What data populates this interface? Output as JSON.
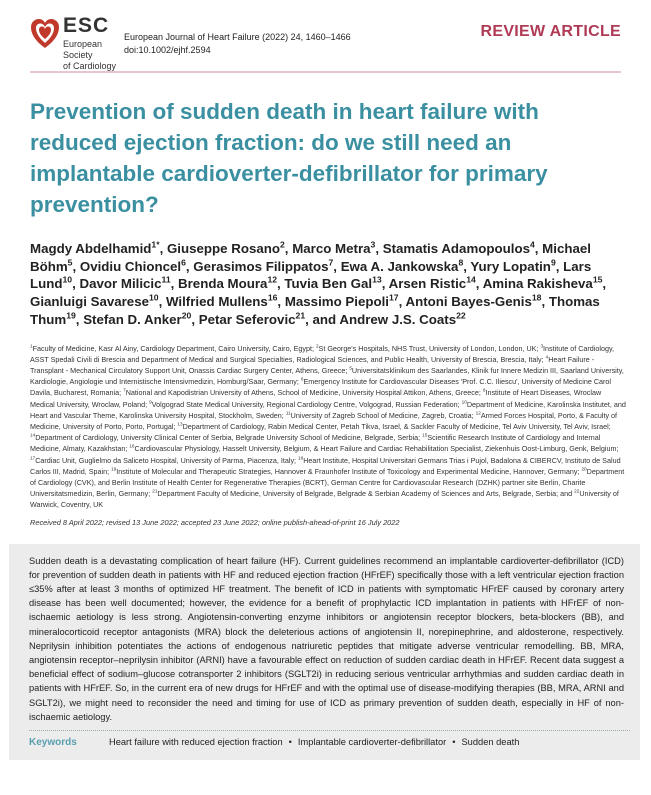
{
  "header": {
    "logo_text": "ESC",
    "society_line1": "European Society",
    "society_line2": "of Cardiology",
    "journal_citation": "European Journal of Heart Failure (2022) 24, 1460–1466",
    "doi": "doi:10.1002/ejhf.2594",
    "article_type": "REVIEW ARTICLE"
  },
  "colors": {
    "title": "#3a8fa1",
    "article_type": "#b03a55",
    "rule": "#e8c6cf",
    "abstract_bg": "#ececec",
    "keywords_label": "#5a9fb0"
  },
  "title": "Prevention of sudden death in heart failure with reduced ejection fraction: do we still need an implantable cardioverter-defibrillator for primary prevention?",
  "authors": [
    {
      "name": "Magdy Abdelhamid",
      "sup": "1*"
    },
    {
      "name": "Giuseppe Rosano",
      "sup": "2"
    },
    {
      "name": "Marco Metra",
      "sup": "3"
    },
    {
      "name": "Stamatis Adamopoulos",
      "sup": "4"
    },
    {
      "name": "Michael Böhm",
      "sup": "5"
    },
    {
      "name": "Ovidiu Chioncel",
      "sup": "6"
    },
    {
      "name": "Gerasimos Filippatos",
      "sup": "7"
    },
    {
      "name": "Ewa A. Jankowska",
      "sup": "8"
    },
    {
      "name": "Yury Lopatin",
      "sup": "9"
    },
    {
      "name": "Lars Lund",
      "sup": "10"
    },
    {
      "name": "Davor Milicic",
      "sup": "11"
    },
    {
      "name": "Brenda Moura",
      "sup": "12"
    },
    {
      "name": "Tuvia Ben Gal",
      "sup": "13"
    },
    {
      "name": "Arsen Ristic",
      "sup": "14"
    },
    {
      "name": "Amina Rakisheva",
      "sup": "15"
    },
    {
      "name": "Gianluigi Savarese",
      "sup": "10"
    },
    {
      "name": "Wilfried Mullens",
      "sup": "16"
    },
    {
      "name": "Massimo Piepoli",
      "sup": "17"
    },
    {
      "name": "Antoni Bayes-Genis",
      "sup": "18"
    },
    {
      "name": "Thomas Thum",
      "sup": "19"
    },
    {
      "name": "Stefan D. Anker",
      "sup": "20"
    },
    {
      "name": "Petar Seferovic",
      "sup": "21"
    },
    {
      "name": "Andrew J.S. Coats",
      "sup": "22",
      "prefix": "and "
    }
  ],
  "affiliations": [
    {
      "num": "1",
      "text": "Faculty of Medicine, Kasr Al Ainy, Cardiology Department, Cairo University, Cairo, Egypt; "
    },
    {
      "num": "2",
      "text": "St George's Hospitals, NHS Trust, University of London, London, UK; "
    },
    {
      "num": "3",
      "text": "Institute of Cardiology, ASST Spedali Civili di Brescia and Department of Medical and Surgical Specialties, Radiological Sciences, and Public Health, University of Brescia, Brescia, Italy; "
    },
    {
      "num": "4",
      "text": "Heart Failure - Transplant - Mechanical Circulatory Support Unit, Onassis Cardiac Surgery Center, Athens, Greece; "
    },
    {
      "num": "5",
      "text": "Universitatsklinikum des Saarlandes, Klinik fur Innere Medizin III, Saarland University, Kardiologie, Angiologie und Internistische Intensivmedizin, Homburg/Saar, Germany; "
    },
    {
      "num": "6",
      "text": "Emergency Institute for Cardiovascular Diseases 'Prof. C.C. Iliescu', University of Medicine Carol Davila, Bucharest, Romania; "
    },
    {
      "num": "7",
      "text": "National and Kapodistrian University of Athens, School of Medicine, University Hospital Attikon, Athens, Greece; "
    },
    {
      "num": "8",
      "text": "Institute of Heart Diseases, Wroclaw Medical University, Wroclaw, Poland; "
    },
    {
      "num": "9",
      "text": "Volgograd State Medical University, Regional Cardiology Centre, Volgograd, Russian Federation; "
    },
    {
      "num": "10",
      "text": "Department of Medicine, Karolinska Institutet, and Heart and Vascular Theme, Karolinska University Hospital, Stockholm, Sweden; "
    },
    {
      "num": "11",
      "text": "University of Zagreb School of Medicine, Zagreb, Croatia; "
    },
    {
      "num": "12",
      "text": "Armed Forces Hospital, Porto, & Faculty of Medicine, University of Porto, Porto, Portugal; "
    },
    {
      "num": "13",
      "text": "Department of Cardiology, Rabin Medical Center, Petah Tikva, Israel, & Sackler Faculty of Medicine, Tel Aviv University, Tel Aviv, Israel; "
    },
    {
      "num": "14",
      "text": "Department of Cardiology, University Clinical Center of Serbia, Belgrade University School of Medicine, Belgrade, Serbia; "
    },
    {
      "num": "15",
      "text": "Scientific Research Institute of Cardiology and Internal Medicine, Almaty, Kazakhstan; "
    },
    {
      "num": "16",
      "text": "Cardiovascular Physiology, Hasselt University, Belgium, & Heart Failure and Cardiac Rehabilitation Specialist, Ziekenhuis Oost-Limburg, Genk, Belgium; "
    },
    {
      "num": "17",
      "text": "Cardiac Unit, Guglielmo da Saliceto Hospital, University of Parma, Piacenza, Italy; "
    },
    {
      "num": "18",
      "text": "Heart Institute, Hospital Universitari Germans Trias i Pujol, Badalona & CIBERCV, Instituto de Salud Carlos III, Madrid, Spain; "
    },
    {
      "num": "19",
      "text": "Institute of Molecular and Therapeutic Strategies, Hannover & Fraunhofer Institute of Toxicology and Experimental Medicine, Hannover, Germany; "
    },
    {
      "num": "20",
      "text": "Department of Cardiology (CVK), and Berlin Institute of Health Center for Regenerative Therapies (BCRT), German Centre for Cardiovascular Research (DZHK) partner site Berlin, Charite Universitatsmedizin, Berlin, Germany; "
    },
    {
      "num": "21",
      "text": "Department Faculty of Medicine, University of Belgrade, Belgrade & Serbian Academy of Sciences and Arts, Belgrade, Serbia; and "
    },
    {
      "num": "22",
      "text": "University of Warwick, Coventry, UK"
    }
  ],
  "dates": "Received 8 April 2022; revised 13 June 2022; accepted 23 June 2022; online publish-ahead-of-print 16 July 2022",
  "abstract": "Sudden death is a devastating complication of heart failure (HF). Current guidelines recommend an implantable cardioverter-defibrillator (ICD) for prevention of sudden death in patients with HF and reduced ejection fraction (HFrEF) specifically those with a left ventricular ejection fraction ≤35% after at least 3 months of optimized HF treatment. The benefit of ICD in patients with symptomatic HFrEF caused by coronary artery disease has been well documented; however, the evidence for a benefit of prophylactic ICD implantation in patients with HFrEF of non-ischaemic aetiology is less strong. Angiotensin-converting enzyme inhibitors or angiotensin receptor blockers, beta-blockers (BB), and mineralocorticoid receptor antagonists (MRA) block the deleterious actions of angiotensin II, norepinephrine, and aldosterone, respectively. Neprilysin inhibition potentiates the actions of endogenous natriuretic peptides that mitigate adverse ventricular remodelling. BB, MRA, angiotensin receptor–neprilysin inhibitor (ARNI) have a favourable effect on reduction of sudden cardiac death in HFrEF. Recent data suggest a beneficial effect of sodium–glucose cotransporter 2 inhibitors (SGLT2i) in reducing serious ventricular arrhythmias and sudden cardiac death in patients with HFrEF. So, in the current era of new drugs for HFrEF and with the optimal use of disease-modifying therapies (BB, MRA, ARNI and SGLT2i), we might need to reconsider the need and timing for use of ICD as primary prevention of sudden death, especially in HF of non-ischaemic aetiology.",
  "keywords": {
    "label": "Keywords",
    "items": [
      "Heart failure with reduced ejection fraction",
      "Implantable cardioverter-defibrillator",
      "Sudden death"
    ],
    "separator": "•"
  }
}
